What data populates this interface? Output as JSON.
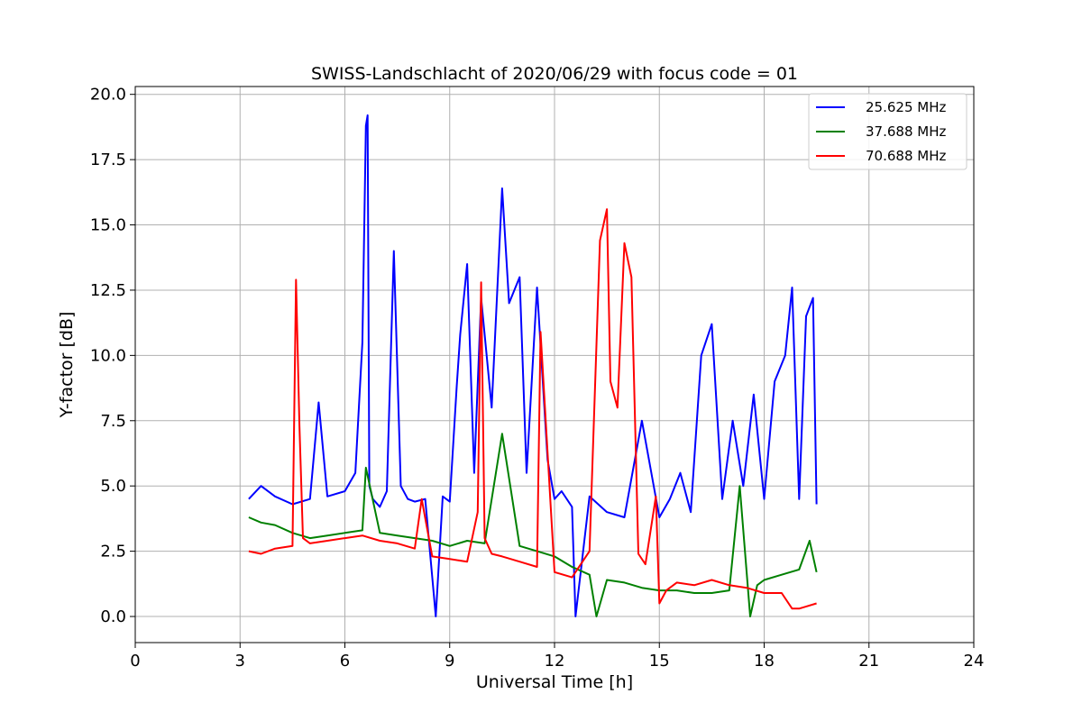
{
  "chart_data": {
    "type": "line",
    "title": "SWISS-Landschlacht of 2020/06/29 with focus code = 01",
    "xlabel": "Universal Time [h]",
    "ylabel": "Y-factor [dB]",
    "xlim": [
      0,
      24
    ],
    "ylim": [
      -1.0,
      20.3
    ],
    "xticks": [
      0,
      3,
      6,
      9,
      12,
      15,
      18,
      21,
      24
    ],
    "xtick_labels": [
      "0",
      "3",
      "6",
      "9",
      "12",
      "15",
      "18",
      "21",
      "24"
    ],
    "yticks": [
      0.0,
      2.5,
      5.0,
      7.5,
      10.0,
      12.5,
      15.0,
      17.5,
      20.0
    ],
    "ytick_labels": [
      "0.0",
      "2.5",
      "5.0",
      "7.5",
      "10.0",
      "12.5",
      "15.0",
      "17.5",
      "20.0"
    ],
    "grid": true,
    "legend_position": "top-right",
    "series": [
      {
        "name": "25.625 MHz",
        "color": "#0000ff",
        "x": [
          3.25,
          3.6,
          4.0,
          4.5,
          5.0,
          5.25,
          5.5,
          6.0,
          6.3,
          6.5,
          6.6,
          6.65,
          6.7,
          6.8,
          7.0,
          7.2,
          7.4,
          7.6,
          7.8,
          8.0,
          8.3,
          8.6,
          8.8,
          9.0,
          9.2,
          9.3,
          9.5,
          9.7,
          9.9,
          10.2,
          10.5,
          10.7,
          11.0,
          11.2,
          11.5,
          11.8,
          12.0,
          12.2,
          12.5,
          12.6,
          13.0,
          13.5,
          14.0,
          14.5,
          15.0,
          15.3,
          15.6,
          15.9,
          16.2,
          16.5,
          16.8,
          17.1,
          17.4,
          17.7,
          18.0,
          18.3,
          18.6,
          18.8,
          19.0,
          19.2,
          19.4,
          19.5
        ],
        "y": [
          4.5,
          5.0,
          4.6,
          4.3,
          4.5,
          8.2,
          4.6,
          4.8,
          5.5,
          10.5,
          18.8,
          19.2,
          5.0,
          4.5,
          4.2,
          4.8,
          14.0,
          5.0,
          4.5,
          4.4,
          4.5,
          0.0,
          4.6,
          4.4,
          8.8,
          10.8,
          13.5,
          5.5,
          12.2,
          8.0,
          16.4,
          12.0,
          13.0,
          5.5,
          12.6,
          6.0,
          4.5,
          4.8,
          4.2,
          0.0,
          4.6,
          4.0,
          3.8,
          7.5,
          3.8,
          4.5,
          5.5,
          4.0,
          10.0,
          11.2,
          4.5,
          7.5,
          5.0,
          8.5,
          4.5,
          9.0,
          10.0,
          12.6,
          4.5,
          11.5,
          12.2,
          4.3
        ]
      },
      {
        "name": "37.688 MHz",
        "color": "#008000",
        "x": [
          3.25,
          3.6,
          4.0,
          4.5,
          5.0,
          5.5,
          6.0,
          6.5,
          6.6,
          7.0,
          7.5,
          8.0,
          8.5,
          9.0,
          9.5,
          10.0,
          10.5,
          11.0,
          11.5,
          12.0,
          12.5,
          13.0,
          13.2,
          13.5,
          14.0,
          14.5,
          15.0,
          15.5,
          16.0,
          16.5,
          17.0,
          17.3,
          17.6,
          17.8,
          18.0,
          18.5,
          19.0,
          19.3,
          19.5
        ],
        "y": [
          3.8,
          3.6,
          3.5,
          3.2,
          3.0,
          3.1,
          3.2,
          3.3,
          5.7,
          3.2,
          3.1,
          3.0,
          2.9,
          2.7,
          2.9,
          2.8,
          7.0,
          2.7,
          2.5,
          2.3,
          1.9,
          1.6,
          0.0,
          1.4,
          1.3,
          1.1,
          1.0,
          1.0,
          0.9,
          0.9,
          1.0,
          5.0,
          0.0,
          1.2,
          1.4,
          1.6,
          1.8,
          2.9,
          1.7
        ]
      },
      {
        "name": "70.688 MHz",
        "color": "#ff0000",
        "x": [
          3.25,
          3.6,
          4.0,
          4.5,
          4.6,
          4.7,
          4.8,
          5.0,
          5.5,
          6.0,
          6.5,
          7.0,
          7.5,
          8.0,
          8.2,
          8.5,
          9.0,
          9.5,
          9.8,
          9.9,
          10.0,
          10.2,
          10.5,
          11.0,
          11.5,
          11.6,
          12.0,
          12.5,
          13.0,
          13.3,
          13.5,
          13.6,
          13.8,
          14.0,
          14.2,
          14.4,
          14.6,
          14.9,
          15.0,
          15.2,
          15.5,
          16.0,
          16.5,
          17.0,
          17.5,
          18.0,
          18.5,
          18.8,
          19.0,
          19.5
        ],
        "y": [
          2.5,
          2.4,
          2.6,
          2.7,
          12.9,
          7.3,
          3.0,
          2.8,
          2.9,
          3.0,
          3.1,
          2.9,
          2.8,
          2.6,
          4.5,
          2.3,
          2.2,
          2.1,
          4.0,
          12.8,
          3.0,
          2.4,
          2.3,
          2.1,
          1.9,
          10.9,
          1.7,
          1.5,
          2.5,
          14.4,
          15.6,
          9.0,
          8.0,
          14.3,
          13.0,
          2.4,
          2.0,
          4.6,
          0.5,
          1.0,
          1.3,
          1.2,
          1.4,
          1.2,
          1.1,
          0.9,
          0.9,
          0.3,
          0.3,
          0.5
        ]
      }
    ]
  }
}
